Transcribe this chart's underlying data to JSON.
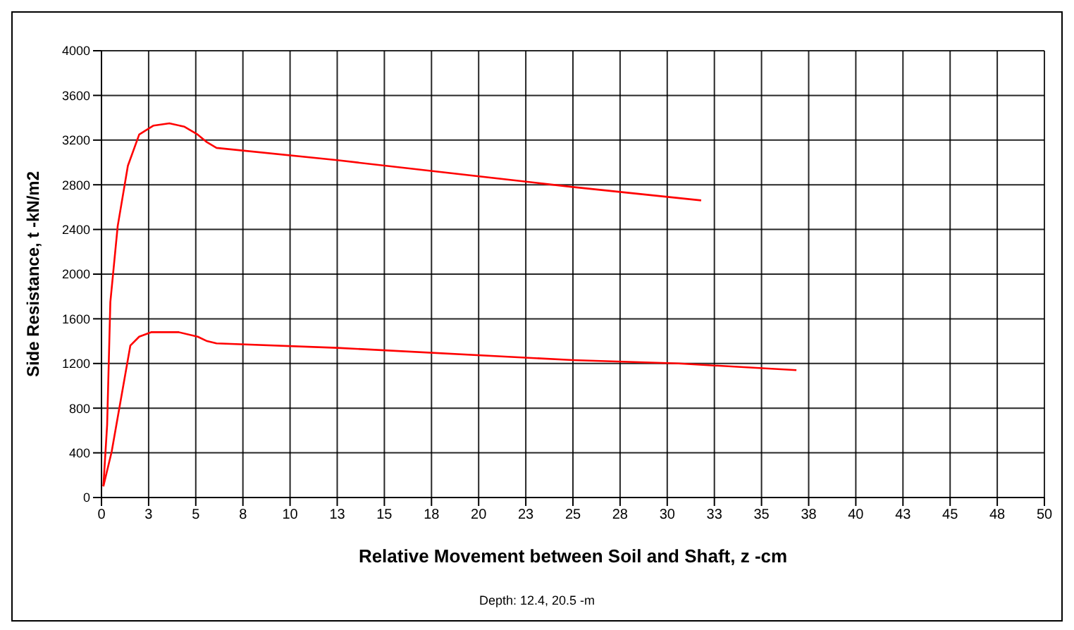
{
  "chart_data": {
    "type": "line",
    "xlabel": "Relative Movement between Soil and Shaft, z -cm",
    "ylabel": "Side Resistance, t -kN/m2",
    "annotations": [
      "Depth:  12.4, 20.5 -m"
    ],
    "xlim": [
      0,
      50
    ],
    "xticks": [
      0,
      {
        "value": 2.5,
        "label": "3"
      },
      5,
      {
        "value": 7.5,
        "label": "8"
      },
      10,
      {
        "value": 12.5,
        "label": "13"
      },
      15,
      {
        "value": 17.5,
        "label": "18"
      },
      20,
      {
        "value": 22.5,
        "label": "23"
      },
      25,
      {
        "value": 27.5,
        "label": "28"
      },
      30,
      {
        "value": 32.5,
        "label": "33"
      },
      35,
      {
        "value": 37.5,
        "label": "38"
      },
      40,
      {
        "value": 42.5,
        "label": "43"
      },
      45,
      {
        "value": 47.5,
        "label": "48"
      },
      50
    ],
    "ylim": [
      0,
      4000
    ],
    "yticks": [
      0,
      400,
      800,
      1200,
      1600,
      2000,
      2400,
      2800,
      3200,
      3600,
      4000
    ],
    "grid": true,
    "marker": "none",
    "line_style": "solid",
    "series": [
      {
        "color": "#ff0000",
        "x": [
          0.1,
          0.3,
          0.47,
          0.86,
          1.4,
          2.0,
          2.76,
          3.6,
          4.4,
          5.1,
          5.6,
          6.1,
          12.5,
          25,
          31.8
        ],
        "values": [
          100,
          650,
          1750,
          2430,
          2970,
          3250,
          3330,
          3350,
          3320,
          3250,
          3180,
          3130,
          3020,
          2780,
          2660
        ]
      },
      {
        "color": "#ff0000",
        "x": [
          0.1,
          0.54,
          1.53,
          2.0,
          2.63,
          4.1,
          5.1,
          5.6,
          6.1,
          12.5,
          25,
          30.6,
          36.85
        ],
        "values": [
          100,
          410,
          1360,
          1440,
          1480,
          1480,
          1440,
          1400,
          1380,
          1340,
          1230,
          1200,
          1140
        ]
      }
    ]
  }
}
